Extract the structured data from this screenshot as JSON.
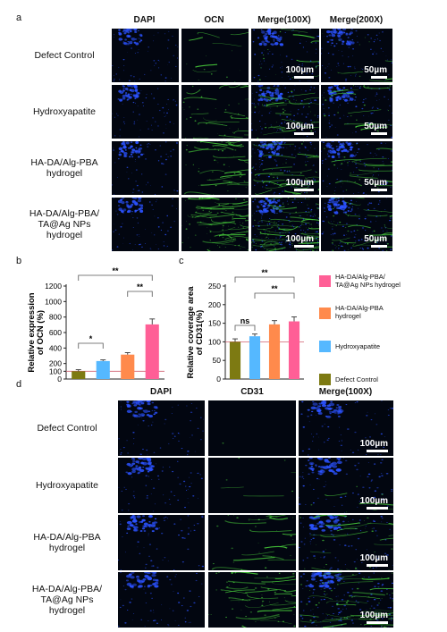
{
  "panels": {
    "a": "a",
    "b": "b",
    "c": "c",
    "d": "d"
  },
  "figure_a": {
    "columns": [
      "DAPI",
      "OCN",
      "Merge(100X)",
      "Merge(200X)"
    ],
    "rows": [
      {
        "label": "Defect Control"
      },
      {
        "label": "Hydroxyapatite"
      },
      {
        "label": "HA-DA/Alg-PBA\nhydrogel"
      },
      {
        "label": "HA-DA/Alg-PBA/\nTA@Ag NPs\nhydrogel"
      }
    ],
    "scale_100": "100µm",
    "scale_50": "50µm"
  },
  "figure_d": {
    "columns": [
      "DAPI",
      "CD31",
      "Merge(100X)"
    ],
    "rows": [
      {
        "label": "Defect Control"
      },
      {
        "label": "Hydroxyapatite"
      },
      {
        "label": "HA-DA/Alg-PBA\nhydrogel"
      },
      {
        "label": "HA-DA/Alg-PBA/\nTA@Ag NPs\nhydrogel"
      }
    ],
    "scale_100": "100µm"
  },
  "colors": {
    "defect_control": "#7d7a12",
    "hydroxyapatite": "#55b8ff",
    "hydrogel": "#ff8a4c",
    "ag_hydrogel": "#ff5f96",
    "dapi": "#2b52ff",
    "ocn": "#49d13c"
  },
  "legend": [
    {
      "label": "HA-DA/Alg-PBA/\nTA@Ag NPs hydrogel",
      "color": "#ff5f96"
    },
    {
      "label": "HA-DA/Alg-PBA\nhydrogel",
      "color": "#ff8a4c"
    },
    {
      "label": "Hydroxyapatite",
      "color": "#55b8ff"
    },
    {
      "label": "Defect Control",
      "color": "#7d7a12"
    }
  ],
  "chart_data": [
    {
      "type": "bar",
      "ylabel": "Relative expression\nof OCN (%)",
      "ylim": [
        0,
        1200
      ],
      "yticks": [
        0,
        100,
        200,
        400,
        600,
        800,
        1000,
        1200
      ],
      "categories": [
        "Defect Control",
        "Hydroxyapatite",
        "HA-DA/Alg-PBA hydrogel",
        "HA-DA/Alg-PBA/TA@Ag NPs hydrogel"
      ],
      "values": [
        100,
        232,
        315,
        705
      ],
      "errors": [
        20,
        15,
        25,
        70
      ],
      "significance": [
        "*",
        "**",
        "**"
      ]
    },
    {
      "type": "bar",
      "ylabel": "Relative coverage area\nof CD31(%)",
      "ylim": [
        0,
        250
      ],
      "yticks": [
        0,
        50,
        100,
        150,
        200,
        250
      ],
      "categories": [
        "Defect Control",
        "Hydroxyapatite",
        "HA-DA/Alg-PBA hydrogel",
        "HA-DA/Alg-PBA/TA@Ag NPs hydrogel"
      ],
      "values": [
        100,
        115,
        147,
        155
      ],
      "errors": [
        8,
        6,
        10,
        12
      ],
      "significance": [
        "ns",
        "**",
        "**"
      ]
    }
  ]
}
